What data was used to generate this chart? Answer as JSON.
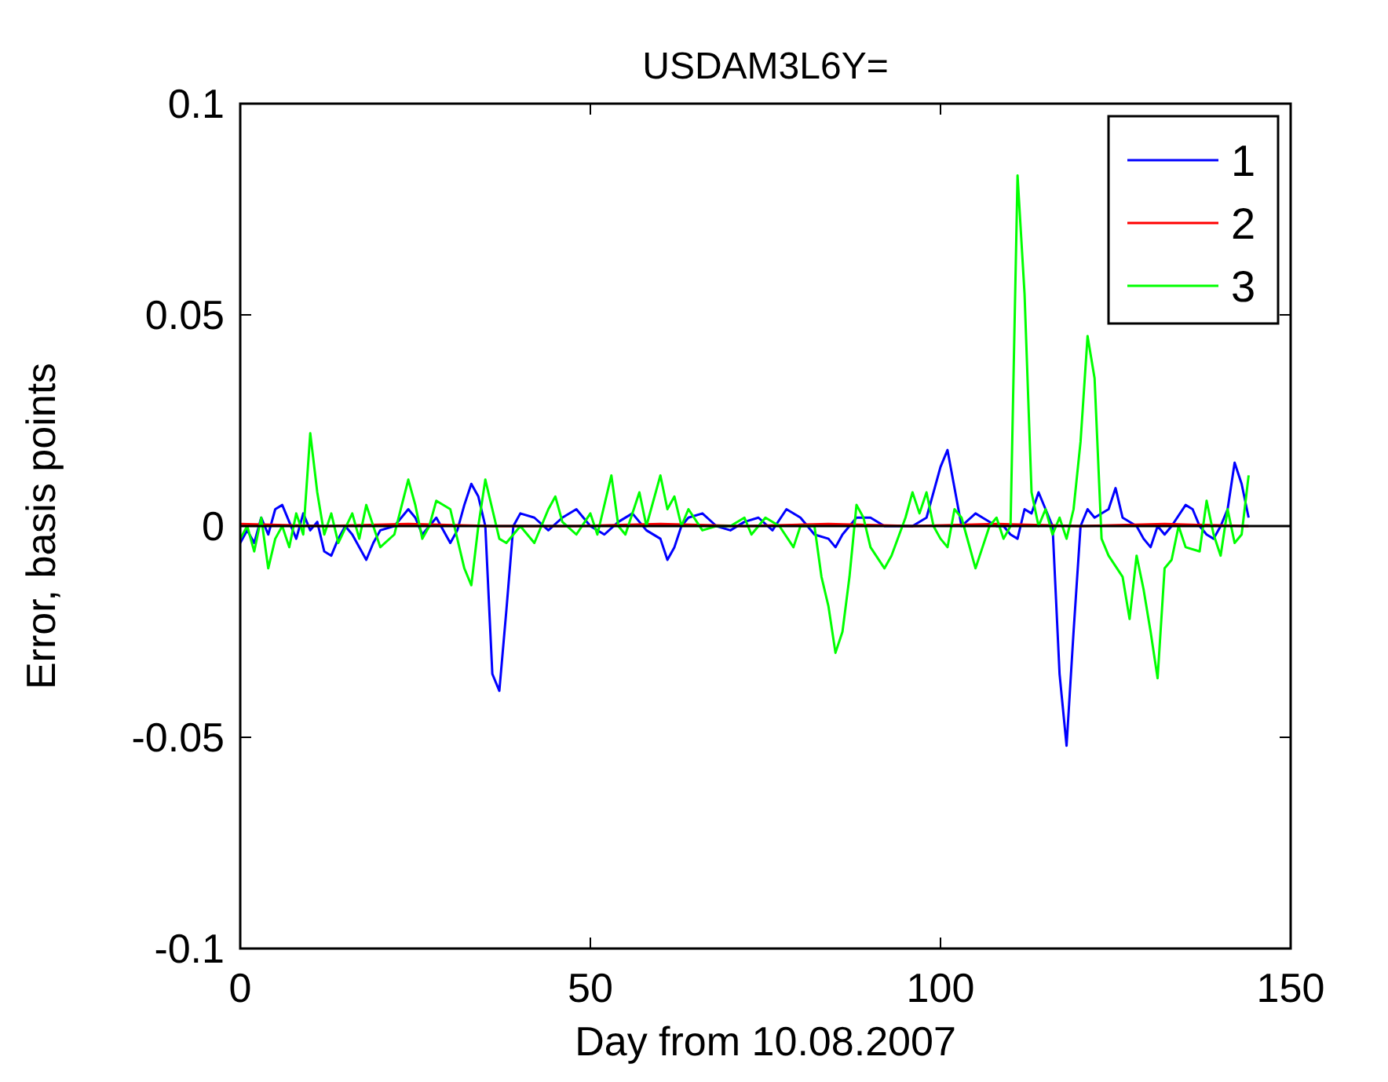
{
  "chart_data": {
    "type": "line",
    "title": "USDAM3L6Y=",
    "xlabel": "Day from 10.08.2007",
    "ylabel": "Error, basis points",
    "xlim": [
      0,
      150
    ],
    "xticks": [
      0,
      50,
      100,
      150
    ],
    "ylim": [
      -0.1,
      0.1
    ],
    "yticks": [
      -0.1,
      -0.05,
      0,
      0.05,
      0.1
    ],
    "grid": false,
    "legend": "top right",
    "line_style": "solid",
    "ref_lines": [
      {
        "axis": "y",
        "value": 0,
        "color": "#000000"
      }
    ],
    "series": [
      {
        "name": "1",
        "color": "#0000ff",
        "x": [
          0,
          1,
          2,
          3,
          4,
          5,
          6,
          7,
          8,
          9,
          10,
          11,
          12,
          13,
          14,
          15,
          16,
          18,
          19,
          20,
          22,
          24,
          25,
          26,
          27,
          28,
          30,
          31,
          32,
          33,
          34,
          35,
          36,
          37,
          38,
          39,
          40,
          42,
          44,
          46,
          48,
          50,
          52,
          54,
          56,
          57,
          58,
          60,
          61,
          62,
          63,
          64,
          66,
          68,
          70,
          72,
          74,
          76,
          78,
          80,
          82,
          84,
          85,
          86,
          88,
          90,
          92,
          94,
          96,
          98,
          100,
          101,
          102,
          103,
          105,
          106,
          108,
          109,
          110,
          111,
          112,
          113,
          114,
          115,
          116,
          117,
          118,
          119,
          120,
          121,
          122,
          124,
          125,
          126,
          128,
          129,
          130,
          131,
          132,
          133,
          135,
          136,
          137,
          138,
          139,
          140,
          141,
          142,
          143,
          144
        ],
        "values": [
          -0.004,
          -0.001,
          -0.004,
          0.002,
          -0.002,
          0.004,
          0.005,
          0.001,
          -0.003,
          0.003,
          -0.001,
          0.001,
          -0.006,
          -0.007,
          -0.003,
          0.0,
          -0.002,
          -0.008,
          -0.004,
          -0.001,
          0.0,
          0.004,
          0.002,
          -0.002,
          0.0,
          0.002,
          -0.004,
          -0.001,
          0.005,
          0.01,
          0.007,
          0.0,
          -0.035,
          -0.039,
          -0.02,
          0.0,
          0.003,
          0.002,
          -0.001,
          0.002,
          0.004,
          0.0,
          -0.002,
          0.001,
          0.003,
          0.001,
          -0.001,
          -0.003,
          -0.008,
          -0.005,
          0.0,
          0.002,
          0.003,
          0.0,
          -0.001,
          0.001,
          0.002,
          -0.001,
          0.004,
          0.002,
          -0.002,
          -0.003,
          -0.005,
          -0.002,
          0.002,
          0.002,
          0.0,
          0.0,
          0.0,
          0.002,
          0.014,
          0.018,
          0.009,
          0.0,
          0.003,
          0.002,
          0.0,
          0.0,
          -0.002,
          -0.003,
          0.004,
          0.003,
          0.008,
          0.004,
          0.0,
          -0.035,
          -0.052,
          -0.025,
          0.0,
          0.004,
          0.002,
          0.004,
          0.009,
          0.002,
          0.0,
          -0.003,
          -0.005,
          0.0,
          -0.002,
          0.0,
          0.005,
          0.004,
          0.0,
          -0.002,
          -0.003,
          0.0,
          0.004,
          0.015,
          0.01,
          0.002
        ]
      },
      {
        "name": "2",
        "color": "#ff0000",
        "x": [
          0,
          12,
          24,
          36,
          48,
          60,
          72,
          84,
          96,
          108,
          120,
          132,
          144
        ],
        "values": [
          0.0005,
          0.0,
          0.0005,
          0.0,
          0.0,
          0.0005,
          0.0,
          0.0005,
          0.0,
          0.0005,
          0.0,
          0.0005,
          0.0
        ]
      },
      {
        "name": "3",
        "color": "#00ff00",
        "x": [
          0,
          1,
          2,
          3,
          4,
          5,
          6,
          7,
          8,
          9,
          10,
          11,
          12,
          13,
          14,
          16,
          17,
          18,
          19,
          20,
          22,
          24,
          25,
          26,
          27,
          28,
          30,
          31,
          32,
          33,
          34,
          35,
          36,
          37,
          38,
          40,
          42,
          44,
          45,
          46,
          48,
          50,
          51,
          53,
          54,
          55,
          57,
          58,
          60,
          61,
          62,
          63,
          64,
          66,
          68,
          70,
          72,
          73,
          75,
          77,
          79,
          80,
          82,
          83,
          84,
          85,
          86,
          87,
          88,
          89,
          90,
          92,
          93,
          95,
          96,
          97,
          98,
          99,
          100,
          101,
          102,
          103,
          104,
          105,
          106,
          107,
          108,
          109,
          110,
          111,
          112,
          113,
          114,
          115,
          116,
          117,
          118,
          119,
          120,
          121,
          122,
          123,
          124,
          126,
          127,
          128,
          129,
          130,
          131,
          132,
          133,
          134,
          135,
          137,
          138,
          139,
          140,
          141,
          142,
          143,
          144
        ],
        "values": [
          -0.003,
          0.0,
          -0.006,
          0.002,
          -0.01,
          -0.003,
          0.0,
          -0.005,
          0.003,
          -0.002,
          0.022,
          0.008,
          -0.002,
          0.003,
          -0.004,
          0.003,
          -0.003,
          0.005,
          0.0,
          -0.005,
          -0.002,
          0.011,
          0.005,
          -0.003,
          0.0,
          0.006,
          0.004,
          -0.003,
          -0.01,
          -0.014,
          0.0,
          0.011,
          0.004,
          -0.003,
          -0.004,
          0.0,
          -0.004,
          0.004,
          0.007,
          0.001,
          -0.002,
          0.003,
          -0.002,
          0.012,
          0.0,
          -0.002,
          0.008,
          0.0,
          0.012,
          0.004,
          0.007,
          0.0,
          0.004,
          -0.001,
          0.0,
          0.0,
          0.002,
          -0.002,
          0.002,
          0.0,
          -0.005,
          0.0,
          0.0,
          -0.012,
          -0.019,
          -0.03,
          -0.025,
          -0.012,
          0.005,
          0.002,
          -0.005,
          -0.01,
          -0.007,
          0.002,
          0.008,
          0.003,
          0.008,
          0.0,
          -0.003,
          -0.005,
          0.004,
          0.002,
          -0.004,
          -0.01,
          -0.005,
          0.0,
          0.002,
          -0.003,
          0.0,
          0.083,
          0.055,
          0.008,
          0.0,
          0.004,
          -0.002,
          0.002,
          -0.003,
          0.004,
          0.02,
          0.045,
          0.035,
          -0.003,
          -0.007,
          -0.012,
          -0.022,
          -0.007,
          -0.015,
          -0.025,
          -0.036,
          -0.01,
          -0.008,
          0.0,
          -0.005,
          -0.006,
          0.006,
          -0.002,
          -0.007,
          0.004,
          -0.004,
          -0.002,
          0.012
        ]
      }
    ]
  }
}
